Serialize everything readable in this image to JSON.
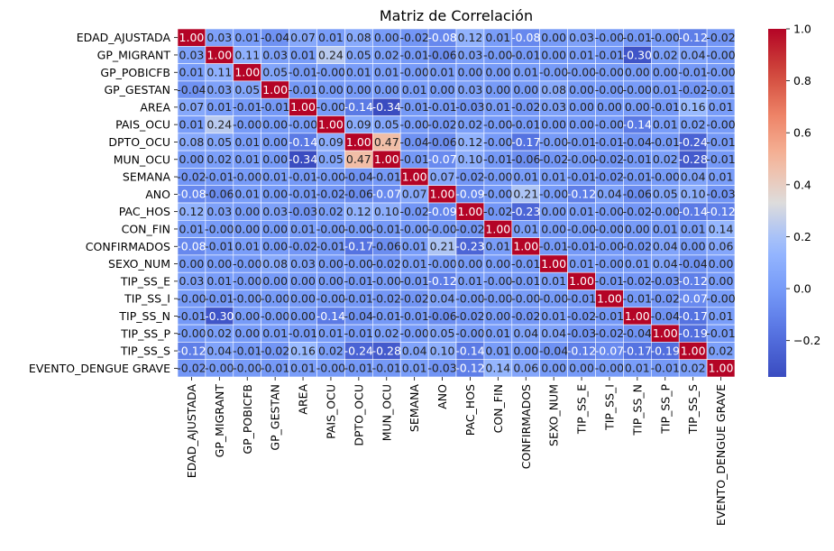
{
  "chart_data": {
    "type": "heatmap",
    "title": "Matriz de Correlación",
    "xlabel": "",
    "ylabel": "",
    "labels": [
      "EDAD_AJUSTADA",
      "GP_MIGRANT",
      "GP_POBICFB",
      "GP_GESTAN",
      "AREA",
      "PAIS_OCU",
      "DPTO_OCU",
      "MUN_OCU",
      "SEMANA",
      "ANO",
      "PAC_HOS",
      "CON_FIN",
      "CONFIRMADOS",
      "SEXO_NUM",
      "TIP_SS_E",
      "TIP_SS_I",
      "TIP_SS_N",
      "TIP_SS_P",
      "TIP_SS_S",
      "EVENTO_DENGUE GRAVE"
    ],
    "matrix": [
      [
        1.0,
        0.03,
        0.01,
        -0.04,
        0.07,
        0.01,
        0.08,
        0.0,
        -0.02,
        -0.08,
        0.12,
        0.01,
        -0.08,
        0.0,
        0.03,
        -0.0,
        -0.01,
        -0.0,
        -0.12,
        -0.02
      ],
      [
        0.03,
        1.0,
        0.11,
        0.03,
        0.01,
        0.24,
        0.05,
        0.02,
        -0.01,
        -0.06,
        0.03,
        -0.0,
        -0.01,
        0.0,
        0.01,
        -0.01,
        -0.3,
        0.02,
        0.04,
        -0.0
      ],
      [
        0.01,
        0.11,
        1.0,
        0.05,
        -0.01,
        -0.0,
        0.01,
        0.01,
        -0.0,
        0.01,
        0.0,
        0.0,
        0.01,
        -0.0,
        -0.0,
        -0.0,
        0.0,
        0.0,
        -0.01,
        -0.0
      ],
      [
        -0.04,
        0.03,
        0.05,
        1.0,
        -0.01,
        0.0,
        0.0,
        0.0,
        0.01,
        0.0,
        0.03,
        0.0,
        0.0,
        0.08,
        0.0,
        -0.0,
        -0.0,
        0.01,
        -0.02,
        -0.01
      ],
      [
        0.07,
        0.01,
        -0.01,
        -0.01,
        1.0,
        -0.0,
        -0.14,
        -0.34,
        -0.01,
        -0.01,
        -0.03,
        0.01,
        -0.02,
        0.03,
        0.0,
        0.0,
        0.0,
        -0.01,
        0.16,
        0.01
      ],
      [
        0.01,
        0.24,
        -0.0,
        0.0,
        -0.0,
        1.0,
        0.09,
        0.05,
        -0.0,
        -0.02,
        0.02,
        -0.0,
        -0.01,
        0.0,
        0.0,
        -0.0,
        -0.14,
        0.01,
        0.02,
        -0.0
      ],
      [
        0.08,
        0.05,
        0.01,
        0.0,
        -0.14,
        0.09,
        1.0,
        0.47,
        -0.04,
        -0.06,
        0.12,
        -0.0,
        -0.17,
        -0.0,
        -0.01,
        -0.01,
        -0.04,
        -0.01,
        -0.24,
        -0.01
      ],
      [
        0.0,
        0.02,
        0.01,
        0.0,
        -0.34,
        0.05,
        0.47,
        1.0,
        -0.01,
        -0.07,
        0.1,
        -0.01,
        -0.06,
        -0.02,
        -0.0,
        -0.02,
        -0.01,
        0.02,
        -0.28,
        -0.01
      ],
      [
        -0.02,
        -0.01,
        -0.0,
        0.01,
        -0.01,
        -0.0,
        -0.04,
        -0.01,
        1.0,
        0.07,
        -0.02,
        -0.0,
        0.01,
        0.01,
        -0.01,
        -0.02,
        -0.01,
        -0.0,
        0.04,
        0.01
      ],
      [
        -0.08,
        -0.06,
        0.01,
        0.0,
        -0.01,
        -0.02,
        -0.06,
        -0.07,
        0.07,
        1.0,
        -0.09,
        -0.0,
        0.21,
        -0.0,
        -0.12,
        0.04,
        -0.06,
        0.05,
        0.1,
        -0.03
      ],
      [
        0.12,
        0.03,
        0.0,
        0.03,
        -0.03,
        0.02,
        0.12,
        0.1,
        -0.02,
        -0.09,
        1.0,
        -0.02,
        -0.23,
        0.0,
        0.01,
        -0.0,
        -0.02,
        -0.0,
        -0.14,
        -0.12
      ],
      [
        0.01,
        -0.0,
        0.0,
        0.0,
        0.01,
        -0.0,
        -0.0,
        -0.01,
        -0.0,
        -0.0,
        -0.02,
        1.0,
        0.01,
        0.0,
        -0.0,
        -0.0,
        0.0,
        0.01,
        0.01,
        0.14
      ],
      [
        -0.08,
        -0.01,
        0.01,
        0.0,
        -0.02,
        -0.01,
        -0.17,
        -0.06,
        0.01,
        0.21,
        -0.23,
        0.01,
        1.0,
        -0.01,
        -0.01,
        -0.0,
        -0.02,
        0.04,
        0.0,
        0.06
      ],
      [
        0.0,
        0.0,
        -0.0,
        0.08,
        0.03,
        0.0,
        -0.0,
        -0.02,
        0.01,
        -0.0,
        0.0,
        0.0,
        -0.01,
        1.0,
        0.01,
        -0.0,
        0.01,
        0.04,
        -0.04,
        0.0
      ],
      [
        0.03,
        0.01,
        -0.0,
        0.0,
        0.0,
        0.0,
        -0.01,
        -0.0,
        -0.01,
        -0.12,
        0.01,
        -0.0,
        -0.01,
        0.01,
        1.0,
        -0.01,
        -0.02,
        -0.03,
        -0.12,
        0.0
      ],
      [
        -0.0,
        -0.01,
        -0.0,
        -0.0,
        0.0,
        -0.0,
        -0.01,
        -0.02,
        -0.02,
        0.04,
        -0.0,
        -0.0,
        -0.0,
        -0.0,
        -0.01,
        1.0,
        -0.01,
        -0.02,
        -0.07,
        -0.0
      ],
      [
        -0.01,
        -0.3,
        0.0,
        -0.0,
        0.0,
        -0.14,
        -0.04,
        -0.01,
        -0.01,
        -0.06,
        -0.02,
        0.0,
        -0.02,
        0.01,
        -0.02,
        -0.01,
        1.0,
        -0.04,
        -0.17,
        0.01
      ],
      [
        -0.0,
        0.02,
        0.0,
        0.01,
        -0.01,
        0.01,
        -0.01,
        0.02,
        -0.0,
        0.05,
        -0.0,
        0.01,
        0.04,
        0.04,
        -0.03,
        -0.02,
        -0.04,
        1.0,
        -0.19,
        -0.01
      ],
      [
        -0.12,
        0.04,
        -0.01,
        -0.02,
        0.16,
        0.02,
        -0.24,
        -0.28,
        0.04,
        0.1,
        -0.14,
        0.01,
        0.0,
        -0.04,
        -0.12,
        -0.07,
        -0.17,
        -0.19,
        1.0,
        0.02
      ],
      [
        -0.02,
        -0.0,
        -0.0,
        -0.01,
        0.01,
        -0.0,
        -0.01,
        -0.01,
        0.01,
        -0.03,
        -0.12,
        0.14,
        0.06,
        0.0,
        0.0,
        -0.0,
        0.01,
        -0.01,
        0.02,
        1.0
      ]
    ],
    "value_range": [
      -0.34,
      1.0
    ],
    "colormap": "coolwarm",
    "colorbar_ticks": [
      -0.2,
      0.0,
      0.2,
      0.4,
      0.6,
      0.8,
      1.0
    ],
    "colorbar_tick_labels": [
      "−0.2",
      "0.0",
      "0.2",
      "0.4",
      "0.6",
      "0.8",
      "1.0"
    ],
    "annotations": "values shown in each cell with 2 decimals",
    "grid": false,
    "legend": "colorbar-right"
  }
}
